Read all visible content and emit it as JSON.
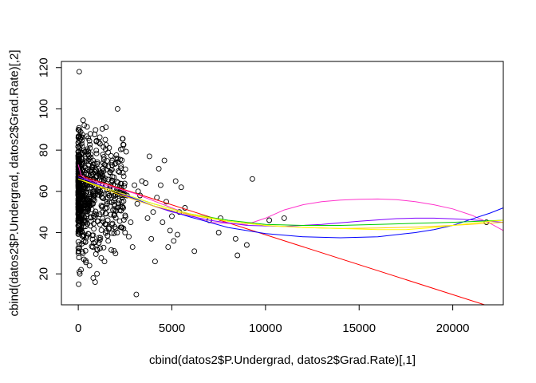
{
  "chart_data": {
    "type": "scatter",
    "xlabel": "cbind(datos2$P.Undergrad, datos2$Grad.Rate)[,1]",
    "ylabel": "cbind(datos2$P.Undergrad, datos2$Grad.Rate)[,2]",
    "xlim": [
      -900,
      22700
    ],
    "ylim": [
      5,
      123
    ],
    "xticks": [
      0,
      5000,
      10000,
      15000,
      20000
    ],
    "yticks": [
      20,
      40,
      60,
      80,
      100,
      120
    ],
    "grid": false,
    "point_style": "open-circle",
    "points": [
      [
        50,
        118
      ],
      [
        20,
        15
      ],
      [
        60,
        21
      ],
      [
        80,
        20
      ],
      [
        150,
        22
      ],
      [
        250,
        30
      ],
      [
        300,
        27
      ],
      [
        600,
        24
      ],
      [
        800,
        18
      ],
      [
        900,
        16
      ],
      [
        1000,
        20
      ],
      [
        1100,
        35
      ],
      [
        1400,
        26
      ],
      [
        1600,
        36
      ],
      [
        1800,
        44
      ],
      [
        2000,
        42
      ],
      [
        2100,
        100
      ],
      [
        2200,
        62
      ],
      [
        2400,
        52
      ],
      [
        2500,
        40
      ],
      [
        2600,
        58
      ],
      [
        2700,
        38
      ],
      [
        2800,
        45
      ],
      [
        2900,
        33
      ],
      [
        3000,
        63
      ],
      [
        3100,
        10
      ],
      [
        3150,
        54
      ],
      [
        3200,
        60
      ],
      [
        3300,
        58
      ],
      [
        3400,
        65
      ],
      [
        3600,
        64
      ],
      [
        3700,
        47
      ],
      [
        3800,
        77
      ],
      [
        3900,
        37
      ],
      [
        4000,
        50
      ],
      [
        4100,
        26
      ],
      [
        4200,
        57
      ],
      [
        4300,
        71
      ],
      [
        4400,
        63
      ],
      [
        4500,
        45
      ],
      [
        4600,
        75
      ],
      [
        4700,
        55
      ],
      [
        4800,
        33
      ],
      [
        4900,
        41
      ],
      [
        5000,
        48
      ],
      [
        5100,
        36
      ],
      [
        5200,
        65
      ],
      [
        5300,
        39
      ],
      [
        5400,
        50
      ],
      [
        5500,
        62
      ],
      [
        5700,
        52
      ],
      [
        6200,
        31
      ],
      [
        7000,
        46
      ],
      [
        7500,
        40
      ],
      [
        7600,
        47
      ],
      [
        8400,
        37
      ],
      [
        8500,
        29
      ],
      [
        9000,
        34
      ],
      [
        9300,
        66
      ],
      [
        10200,
        46
      ],
      [
        11000,
        47
      ],
      [
        21800,
        45
      ]
    ],
    "point_cloud": {
      "x_range": [
        0,
        2600
      ],
      "y_range": [
        20,
        100
      ],
      "count": 700
    },
    "series": [
      {
        "color": "#ff0000",
        "x": [
          0,
          21700
        ],
        "y": [
          68,
          5
        ]
      },
      {
        "color": "#ff33cc",
        "x": [
          0,
          150,
          400,
          800,
          1500,
          3000,
          5000,
          7000,
          9000,
          10000,
          11000,
          12000,
          13000,
          14000,
          15000,
          16000,
          17000,
          18000,
          19000,
          20000,
          21000,
          22000,
          22700
        ],
        "y": [
          73,
          68,
          66,
          65,
          63,
          59,
          52,
          45,
          44,
          47,
          51,
          53.5,
          55,
          55.8,
          56.2,
          56.3,
          56,
          55,
          53.5,
          51.5,
          48.5,
          44.5,
          41
        ]
      },
      {
        "color": "#0000ff",
        "x": [
          0,
          2000,
          4000,
          6000,
          8000,
          10000,
          12000,
          14000,
          16000,
          18000,
          19000,
          20000,
          21000,
          22000,
          22700
        ],
        "y": [
          67,
          60,
          53,
          47.5,
          42.5,
          39.5,
          38,
          37.5,
          38,
          40,
          41.5,
          43.5,
          46.5,
          49.5,
          52
        ]
      },
      {
        "color": "#7f00ff",
        "x": [
          0,
          1500,
          3000,
          5000,
          7000,
          9000,
          11000,
          13000,
          15000,
          17000,
          18000,
          19000,
          20000,
          21000,
          22000,
          22700
        ],
        "y": [
          67,
          62,
          56,
          50,
          46,
          43.5,
          43,
          44,
          45.5,
          46.8,
          47,
          47,
          46.7,
          46.2,
          45.5,
          45
        ]
      },
      {
        "color": "#00cc00",
        "x": [
          0,
          2000,
          4000,
          6000,
          8000,
          10000,
          12000,
          14000,
          16000,
          18000,
          20000,
          22700
        ],
        "y": [
          66,
          60,
          54,
          49,
          46,
          44,
          43.5,
          43.5,
          44,
          44.5,
          45,
          46
        ]
      },
      {
        "color": "#ffcc00",
        "x": [
          0,
          2000,
          4000,
          6000,
          8000,
          10000,
          12000,
          14000,
          16000,
          18000,
          20000,
          22700
        ],
        "y": [
          66,
          59,
          53,
          48.5,
          45.5,
          43.5,
          42.5,
          42,
          42.2,
          42.7,
          43.5,
          45
        ]
      },
      {
        "color": "#ffff00",
        "x": [
          0,
          2000,
          4000,
          6000,
          8000,
          10000,
          12000,
          14000,
          16000,
          17500,
          19000,
          20500,
          22000,
          22700
        ],
        "y": [
          66,
          60,
          54,
          49,
          45.5,
          43.5,
          42.5,
          42,
          41.5,
          41.5,
          42.5,
          44,
          45.5,
          46
        ]
      }
    ]
  }
}
